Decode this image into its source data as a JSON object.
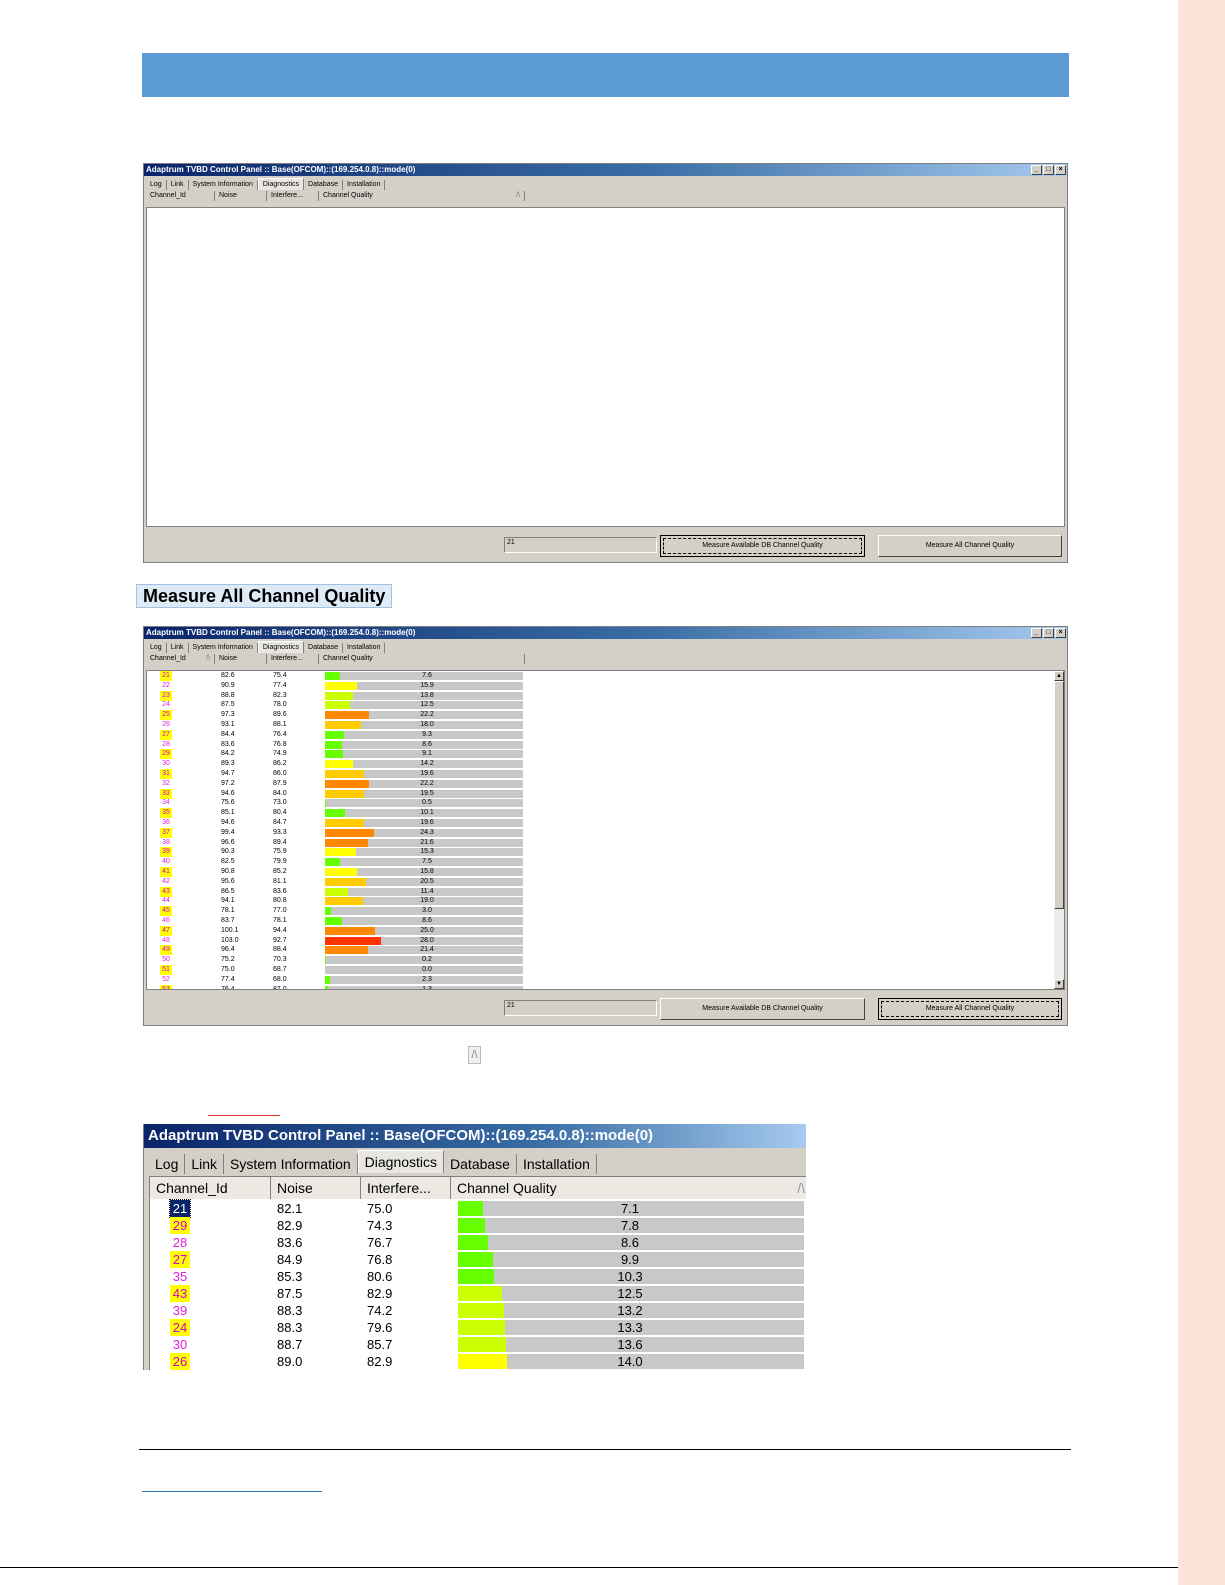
{
  "caption": "Measure All Channel Quality",
  "sort_glyph": "/\\",
  "window_title": "Adaptrum TVBD Control Panel :: Base(OFCOM)::(169.254.0.8)::mode(0)",
  "window_controls": [
    "_",
    "□",
    "×"
  ],
  "tabs": [
    "Log",
    "Link",
    "System Information",
    "Diagnostics",
    "Database",
    "Installation"
  ],
  "columns": [
    "Channel_Id",
    "Noise",
    "Interfere...",
    "Channel Quality"
  ],
  "status_value": "21",
  "buttons": {
    "measure_db": "Measure Available DB Channel Quality",
    "measure_all": "Measure All Channel Quality"
  },
  "scroll_arrows": {
    "up": "▲",
    "down": "▼"
  },
  "colors": {
    "banner": "#5b9bd5",
    "side_strip": "#fbe5d9",
    "quality_green": "#66ff00",
    "quality_yellowgreen": "#ccff00",
    "quality_yellow": "#ffff00",
    "quality_gold": "#ffcc00",
    "quality_orange": "#ff8800",
    "quality_red": "#ff3300",
    "highlight": "#ffff00"
  },
  "all_channels": [
    {
      "id": "21",
      "hl": true,
      "noise": "82.6",
      "intf": "75.4",
      "q": 7.6,
      "ql": "7.6"
    },
    {
      "id": "22",
      "hl": false,
      "noise": "90.9",
      "intf": "77.4",
      "q": 15.9,
      "ql": "15.9"
    },
    {
      "id": "23",
      "hl": true,
      "noise": "88.8",
      "intf": "82.3",
      "q": 13.8,
      "ql": "13.8"
    },
    {
      "id": "24",
      "hl": false,
      "noise": "87.5",
      "intf": "78.0",
      "q": 12.5,
      "ql": "12.5"
    },
    {
      "id": "25",
      "hl": true,
      "noise": "97.3",
      "intf": "89.6",
      "q": 22.2,
      "ql": "22.2"
    },
    {
      "id": "26",
      "hl": false,
      "noise": "93.1",
      "intf": "88.1",
      "q": 18.0,
      "ql": "18.0"
    },
    {
      "id": "27",
      "hl": true,
      "noise": "84.4",
      "intf": "76.4",
      "q": 9.3,
      "ql": "9.3"
    },
    {
      "id": "28",
      "hl": false,
      "noise": "83.6",
      "intf": "76.8",
      "q": 8.6,
      "ql": "8.6"
    },
    {
      "id": "29",
      "hl": true,
      "noise": "84.2",
      "intf": "74.9",
      "q": 9.1,
      "ql": "9.1"
    },
    {
      "id": "30",
      "hl": false,
      "noise": "89.3",
      "intf": "86.2",
      "q": 14.2,
      "ql": "14.2"
    },
    {
      "id": "31",
      "hl": true,
      "noise": "94.7",
      "intf": "86.0",
      "q": 19.6,
      "ql": "19.6"
    },
    {
      "id": "32",
      "hl": false,
      "noise": "97.2",
      "intf": "87.9",
      "q": 22.2,
      "ql": "22.2"
    },
    {
      "id": "33",
      "hl": true,
      "noise": "94.6",
      "intf": "84.0",
      "q": 19.5,
      "ql": "19.5"
    },
    {
      "id": "34",
      "hl": false,
      "noise": "75.6",
      "intf": "73.0",
      "q": 0.5,
      "ql": "0.5"
    },
    {
      "id": "35",
      "hl": true,
      "noise": "85.1",
      "intf": "80.4",
      "q": 10.1,
      "ql": "10.1"
    },
    {
      "id": "36",
      "hl": false,
      "noise": "94.6",
      "intf": "84.7",
      "q": 19.6,
      "ql": "19.6"
    },
    {
      "id": "37",
      "hl": true,
      "noise": "99.4",
      "intf": "93.3",
      "q": 24.3,
      "ql": "24.3"
    },
    {
      "id": "38",
      "hl": false,
      "noise": "96.6",
      "intf": "89.4",
      "q": 21.6,
      "ql": "21.6"
    },
    {
      "id": "39",
      "hl": true,
      "noise": "90.3",
      "intf": "75.9",
      "q": 15.3,
      "ql": "15.3"
    },
    {
      "id": "40",
      "hl": false,
      "noise": "82.5",
      "intf": "79.9",
      "q": 7.5,
      "ql": "7.5"
    },
    {
      "id": "41",
      "hl": true,
      "noise": "90.8",
      "intf": "85.2",
      "q": 15.8,
      "ql": "15.8"
    },
    {
      "id": "42",
      "hl": false,
      "noise": "95.6",
      "intf": "81.1",
      "q": 20.5,
      "ql": "20.5"
    },
    {
      "id": "43",
      "hl": true,
      "noise": "86.5",
      "intf": "83.6",
      "q": 11.4,
      "ql": "11.4"
    },
    {
      "id": "44",
      "hl": false,
      "noise": "94.1",
      "intf": "80.8",
      "q": 19.0,
      "ql": "19.0"
    },
    {
      "id": "45",
      "hl": true,
      "noise": "78.1",
      "intf": "77.0",
      "q": 3.0,
      "ql": "3.0"
    },
    {
      "id": "46",
      "hl": false,
      "noise": "83.7",
      "intf": "78.1",
      "q": 8.6,
      "ql": "8.6"
    },
    {
      "id": "47",
      "hl": true,
      "noise": "100.1",
      "intf": "94.4",
      "q": 25.0,
      "ql": "25.0"
    },
    {
      "id": "48",
      "hl": false,
      "noise": "103.0",
      "intf": "92.7",
      "q": 28.0,
      "ql": "28.0"
    },
    {
      "id": "49",
      "hl": true,
      "noise": "96.4",
      "intf": "88.4",
      "q": 21.4,
      "ql": "21.4"
    },
    {
      "id": "50",
      "hl": false,
      "noise": "75.2",
      "intf": "70.3",
      "q": 0.2,
      "ql": "0.2"
    },
    {
      "id": "51",
      "hl": true,
      "noise": "75.0",
      "intf": "68.7",
      "q": 0.0,
      "ql": "0.0"
    },
    {
      "id": "52",
      "hl": false,
      "noise": "77.4",
      "intf": "68.0",
      "q": 2.3,
      "ql": "2.3"
    },
    {
      "id": "53",
      "hl": true,
      "noise": "76.4",
      "intf": "87.0",
      "q": 1.3,
      "ql": "1.3"
    }
  ],
  "sorted_channels": [
    {
      "id": "21",
      "hl": false,
      "sel": true,
      "noise": "82.1",
      "intf": "75.0",
      "q": 7.1,
      "ql": "7.1"
    },
    {
      "id": "29",
      "hl": true,
      "sel": false,
      "noise": "82.9",
      "intf": "74.3",
      "q": 7.8,
      "ql": "7.8"
    },
    {
      "id": "28",
      "hl": false,
      "sel": false,
      "noise": "83.6",
      "intf": "76.7",
      "q": 8.6,
      "ql": "8.6"
    },
    {
      "id": "27",
      "hl": true,
      "sel": false,
      "noise": "84.9",
      "intf": "76.8",
      "q": 9.9,
      "ql": "9.9"
    },
    {
      "id": "35",
      "hl": false,
      "sel": false,
      "noise": "85.3",
      "intf": "80.6",
      "q": 10.3,
      "ql": "10.3"
    },
    {
      "id": "43",
      "hl": true,
      "sel": false,
      "noise": "87.5",
      "intf": "82.9",
      "q": 12.5,
      "ql": "12.5"
    },
    {
      "id": "39",
      "hl": false,
      "sel": false,
      "noise": "88.3",
      "intf": "74.2",
      "q": 13.2,
      "ql": "13.2"
    },
    {
      "id": "24",
      "hl": true,
      "sel": false,
      "noise": "88.3",
      "intf": "79.6",
      "q": 13.3,
      "ql": "13.3"
    },
    {
      "id": "30",
      "hl": false,
      "sel": false,
      "noise": "88.7",
      "intf": "85.7",
      "q": 13.6,
      "ql": "13.6"
    },
    {
      "id": "26",
      "hl": true,
      "sel": false,
      "noise": "89.0",
      "intf": "82.9",
      "q": 14.0,
      "ql": "14.0"
    }
  ]
}
